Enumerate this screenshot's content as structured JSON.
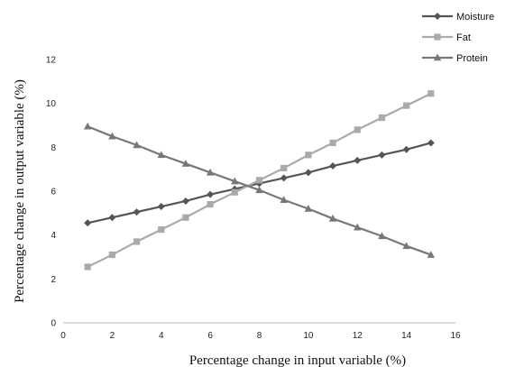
{
  "chart_data": {
    "type": "line",
    "xlabel": "Percentage change in input variable (%)",
    "ylabel": "Percentage change in output variable (%)",
    "xlim": [
      0,
      16
    ],
    "ylim": [
      0,
      12
    ],
    "xticks": [
      0,
      2,
      4,
      6,
      8,
      10,
      12,
      14,
      16
    ],
    "yticks": [
      0,
      2,
      4,
      6,
      8,
      10,
      12
    ],
    "grid": false,
    "legend": "top-right",
    "x": [
      1,
      2,
      3,
      4,
      5,
      6,
      7,
      8,
      9,
      10,
      11,
      12,
      13,
      14,
      15
    ],
    "series": [
      {
        "name": "Moisture",
        "marker": "diamond",
        "color": "#555555",
        "values": [
          4.55,
          4.8,
          5.05,
          5.3,
          5.55,
          5.85,
          6.1,
          6.35,
          6.6,
          6.85,
          7.15,
          7.4,
          7.65,
          7.9,
          8.2
        ]
      },
      {
        "name": "Fat",
        "marker": "square",
        "color": "#aaaaaa",
        "values": [
          2.55,
          3.1,
          3.7,
          4.25,
          4.8,
          5.4,
          5.95,
          6.5,
          7.05,
          7.65,
          8.2,
          8.8,
          9.35,
          9.9,
          10.45
        ]
      },
      {
        "name": "Protein",
        "marker": "triangle",
        "color": "#777777",
        "values": [
          8.95,
          8.5,
          8.1,
          7.65,
          7.25,
          6.85,
          6.45,
          6.05,
          5.6,
          5.2,
          4.75,
          4.35,
          3.95,
          3.5,
          3.1
        ]
      }
    ]
  }
}
